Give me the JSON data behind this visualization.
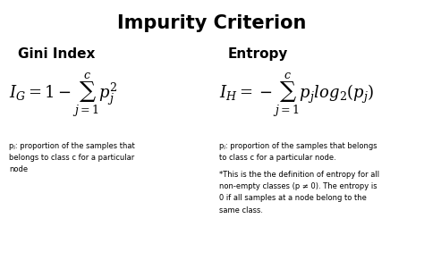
{
  "title": "Impurity Criterion",
  "title_fontsize": 15,
  "title_fontweight": "bold",
  "background_color": "#ffffff",
  "text_color": "#000000",
  "left_header": "Gini Index",
  "right_header": "Entropy",
  "header_fontsize": 11,
  "header_fontweight": "bold",
  "formula_fontsize": 13,
  "note_fontsize": 6.0,
  "gini_note": "pⱼ: proportion of the samples that\nbelongs to class c for a particular\nnode",
  "entropy_note_line1": "pⱼ: proportion of the samples that belongs\nto class c for a particular node.",
  "entropy_note_line2": "*This is the the definition of entropy for all\nnon-empty classes (p ≠ 0). The entropy is\n0 if all samples at a node belong to the\nsame class."
}
